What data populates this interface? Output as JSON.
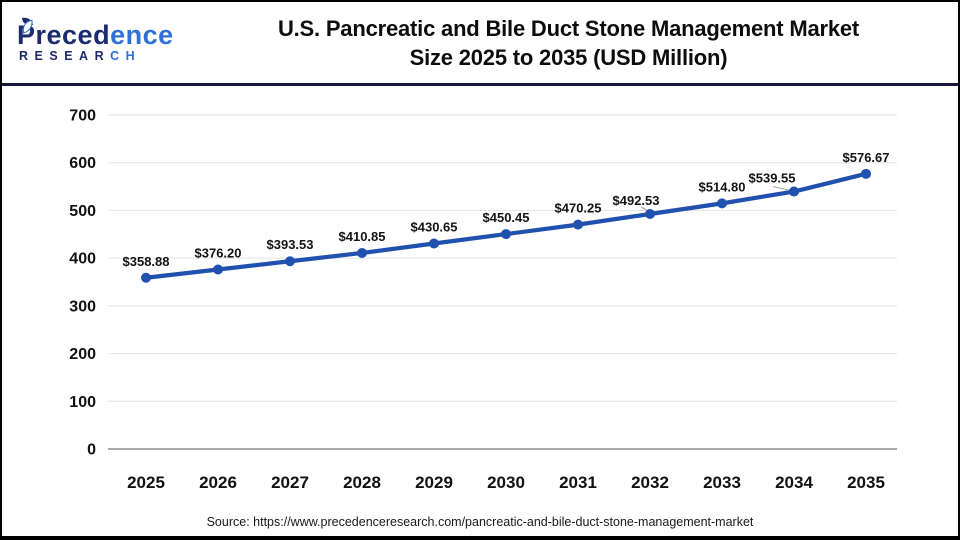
{
  "header": {
    "logo": {
      "name_dark": "Preced",
      "name_light": "ence",
      "sub_dark": "RESEAR",
      "sub_light": "CH"
    },
    "title_line1": "U.S. Pancreatic and Bile Duct Stone Management Market",
    "title_line2": "Size 2025 to 2035 (USD Million)"
  },
  "chart_data": {
    "type": "line",
    "title": "U.S. Pancreatic and Bile Duct Stone Management Market Size 2025 to 2035 (USD Million)",
    "categories": [
      "2025",
      "2026",
      "2027",
      "2028",
      "2029",
      "2030",
      "2031",
      "2032",
      "2033",
      "2034",
      "2035"
    ],
    "series": [
      {
        "name": "U.S. Pancreatic and Bile Duct Stone Management Market Size (USD Million)",
        "values": [
          358.88,
          376.2,
          393.53,
          410.85,
          430.65,
          450.45,
          470.25,
          492.53,
          514.8,
          539.55,
          576.67
        ]
      }
    ],
    "data_labels": [
      "$358.88",
      "$376.20",
      "$393.53",
      "$410.85",
      "$430.65",
      "$450.45",
      "$470.25",
      "$492.53",
      "$514.80",
      "$539.55",
      "$576.67"
    ],
    "xlabel": "",
    "ylabel": "",
    "ylim": [
      0,
      700
    ],
    "yticks": [
      0,
      100,
      200,
      300,
      400,
      500,
      600,
      700
    ],
    "grid": true,
    "legend": false,
    "line_color": "#2151ae",
    "marker": "circle"
  },
  "footer": {
    "source": "Source: https://www.precedenceresearch.com/pancreatic-and-bile-duct-stone-management-market"
  },
  "colors": {
    "logo_navy": "#1d2b6e",
    "logo_blue": "#2f6fd6",
    "divider_navy": "#16163f",
    "grid_line": "#e8e8e8",
    "axis_line": "#a8a8a8",
    "leader_line": "#999999",
    "text": "#111111"
  }
}
